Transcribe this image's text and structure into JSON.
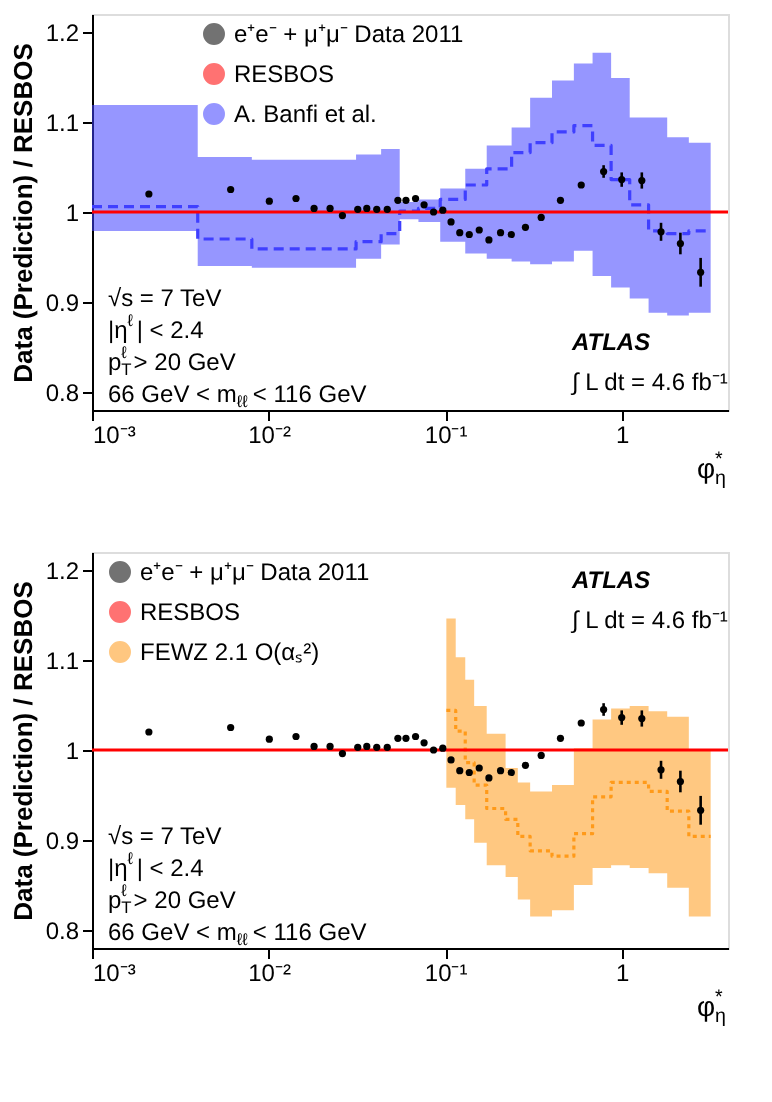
{
  "chart_data": [
    {
      "type": "scatter",
      "ylabel": "Data (Prediction) / RESBOS",
      "xlabel": "φ$^{*}$$_{η}$",
      "xlim": [
        0.001,
        4
      ],
      "ylim": [
        0.78,
        1.22
      ],
      "log": "x",
      "xticks": [
        {
          "value": 0.001,
          "label": "10⁻³"
        },
        {
          "value": 0.01,
          "label": "10⁻²"
        },
        {
          "value": 0.1,
          "label": "10⁻¹"
        },
        1
      ],
      "yticks": [
        0.8,
        0.9,
        1,
        1.1,
        1.2
      ],
      "grid": false,
      "legend": "top",
      "annotations": [
        "√s = 7 TeV",
        "|η$^{ℓ}$| < 2.4",
        "p$_{T}$$^{ℓ}$ > 20 GeV",
        "66 GeV < m$_{ℓℓ}$ < 116 GeV",
        "ATLAS",
        "∫ L dt = 4.6 fb⁻¹"
      ],
      "series": [
        {
          "name": "e⁺e⁻ + μ⁺μ⁻ Data 2011",
          "marker": "circle",
          "color": "#000000",
          "x": [
            0.0021,
            0.0061,
            0.0101,
            0.0143,
            0.0181,
            0.0223,
            0.0262,
            0.032,
            0.036,
            0.041,
            0.047,
            0.054,
            0.06,
            0.068,
            0.076,
            0.086,
            0.097,
            0.108,
            0.121,
            0.137,
            0.156,
            0.177,
            0.206,
            0.237,
            0.285,
            0.35,
            0.45,
            0.59,
            0.79,
            1.0,
            1.3,
            1.67,
            2.15,
            2.8
          ],
          "values": [
            1.02,
            1.025,
            1.012,
            1.015,
            1.004,
            1.004,
            0.996,
            1.003,
            1.004,
            1.003,
            1.003,
            1.013,
            1.013,
            1.015,
            1.008,
            1.0,
            1.002,
            0.989,
            0.977,
            0.975,
            0.98,
            0.969,
            0.977,
            0.975,
            0.983,
            0.994,
            1.013,
            1.03,
            1.045,
            1.036,
            1.035,
            0.978,
            0.965,
            0.933
          ],
          "errors": [
            null,
            null,
            null,
            null,
            null,
            null,
            null,
            null,
            null,
            null,
            null,
            null,
            null,
            null,
            null,
            null,
            null,
            null,
            null,
            null,
            null,
            null,
            null,
            null,
            null,
            null,
            null,
            null,
            0.007,
            0.008,
            0.009,
            0.01,
            0.012,
            0.016
          ]
        },
        {
          "name": "RESBOS",
          "type": "line",
          "color": "#ff0000",
          "x": [
            0.001,
            4
          ],
          "values": [
            1,
            1
          ],
          "line_style": "solid"
        },
        {
          "name": "A. Banfi et al.",
          "type": "step",
          "color": "#3f3fff",
          "line_style": "dashed",
          "x": [
            0.001,
            0.00397,
            0.00804,
            0.0313,
            0.0434,
            0.0553,
            0.0706,
            0.0938,
            0.13,
            0.172,
            0.238,
            0.303,
            0.403,
            0.536,
            0.684,
            0.871,
            1.11,
            1.42,
            1.81,
            2.4,
            3.19
          ],
          "values": [
            1.006,
            0.97,
            0.959,
            0.967,
            0.976,
            1.001,
            1.004,
            1.014,
            1.03,
            1.048,
            1.066,
            1.077,
            1.089,
            1.096,
            1.074,
            1.036,
            1.008,
            0.979,
            0.976,
            0.979,
            0.979
          ],
          "upper": [
            1.119,
            1.061,
            1.058,
            1.064,
            1.07,
            1.011,
            1.014,
            1.026,
            1.048,
            1.074,
            1.094,
            1.127,
            1.146,
            1.165,
            1.177,
            1.149,
            1.105,
            1.105,
            1.083,
            1.077,
            1.077
          ],
          "lower": [
            0.979,
            0.94,
            0.938,
            0.948,
            0.964,
            0.992,
            0.989,
            0.967,
            0.954,
            0.948,
            0.945,
            0.942,
            0.945,
            0.957,
            0.929,
            0.916,
            0.904,
            0.888,
            0.885,
            0.888,
            0.888
          ]
        }
      ]
    },
    {
      "type": "scatter",
      "ylabel": "Data (Prediction) / RESBOS",
      "xlabel": "φ$^{*}$$_{η}$",
      "xlim": [
        0.001,
        4
      ],
      "ylim": [
        0.78,
        1.22
      ],
      "log": "x",
      "xticks": [
        {
          "value": 0.001,
          "label": "10⁻³"
        },
        {
          "value": 0.01,
          "label": "10⁻²"
        },
        {
          "value": 0.1,
          "label": "10⁻¹"
        },
        1
      ],
      "yticks": [
        0.8,
        0.9,
        1,
        1.1,
        1.2
      ],
      "grid": false,
      "legend": "top left",
      "annotations": [
        "√s = 7 TeV",
        "|η$^{ℓ}$| < 2.4",
        "p$_{T}$$^{ℓ}$ > 20 GeV",
        "66 GeV < m$_{ℓℓ}$ < 116 GeV",
        "ATLAS",
        "∫ L dt = 4.6 fb⁻¹"
      ],
      "series": [
        {
          "name": "e⁺e⁻ + μ⁺μ⁻ Data 2011",
          "marker": "circle",
          "color": "#000000",
          "x": [
            0.0021,
            0.0061,
            0.0101,
            0.0143,
            0.0181,
            0.0223,
            0.0262,
            0.032,
            0.036,
            0.041,
            0.047,
            0.054,
            0.06,
            0.068,
            0.076,
            0.086,
            0.097,
            0.108,
            0.121,
            0.137,
            0.156,
            0.177,
            0.206,
            0.237,
            0.285,
            0.35,
            0.45,
            0.59,
            0.79,
            1.0,
            1.3,
            1.67,
            2.15,
            2.8
          ],
          "values": [
            1.02,
            1.025,
            1.012,
            1.015,
            1.004,
            1.004,
            0.996,
            1.003,
            1.004,
            1.003,
            1.003,
            1.013,
            1.013,
            1.015,
            1.008,
            1.0,
            1.002,
            0.989,
            0.977,
            0.975,
            0.98,
            0.969,
            0.977,
            0.975,
            0.983,
            0.994,
            1.013,
            1.03,
            1.045,
            1.036,
            1.035,
            0.978,
            0.965,
            0.933
          ],
          "errors": [
            null,
            null,
            null,
            null,
            null,
            null,
            null,
            null,
            null,
            null,
            null,
            null,
            null,
            null,
            null,
            null,
            null,
            null,
            null,
            null,
            null,
            null,
            null,
            null,
            null,
            null,
            null,
            null,
            0.007,
            0.008,
            0.009,
            0.01,
            0.012,
            0.016
          ]
        },
        {
          "name": "RESBOS",
          "type": "line",
          "color": "#ff0000",
          "x": [
            0.001,
            4
          ],
          "values": [
            1,
            1
          ],
          "line_style": "solid"
        },
        {
          "name": "FEWZ 2.1 O(αₛ²)",
          "type": "step",
          "color": "#ff9a1a",
          "line_style": "dotted",
          "x": [
            0.1016,
            0.1148,
            0.13,
            0.146,
            0.172,
            0.22,
            0.258,
            0.303,
            0.403,
            0.536,
            0.684,
            0.871,
            1.11,
            1.42,
            1.81,
            2.4,
            3.19
          ],
          "values": [
            1.044,
            1.021,
            0.986,
            0.961,
            0.935,
            0.923,
            0.904,
            0.888,
            0.882,
            0.907,
            0.948,
            0.964,
            0.964,
            0.954,
            0.932,
            0.904,
            0.904
          ],
          "upper": [
            1.146,
            1.103,
            1.078,
            1.049,
            1.018,
            0.98,
            0.964,
            0.954,
            0.961,
            1.002,
            1.034,
            1.046,
            1.049,
            1.043,
            1.037,
            0.999,
            0.999
          ],
          "lower": [
            0.958,
            0.939,
            0.923,
            0.897,
            0.872,
            0.859,
            0.834,
            0.815,
            0.822,
            0.85,
            0.869,
            0.872,
            0.869,
            0.863,
            0.847,
            0.815,
            0.815
          ]
        }
      ]
    }
  ]
}
